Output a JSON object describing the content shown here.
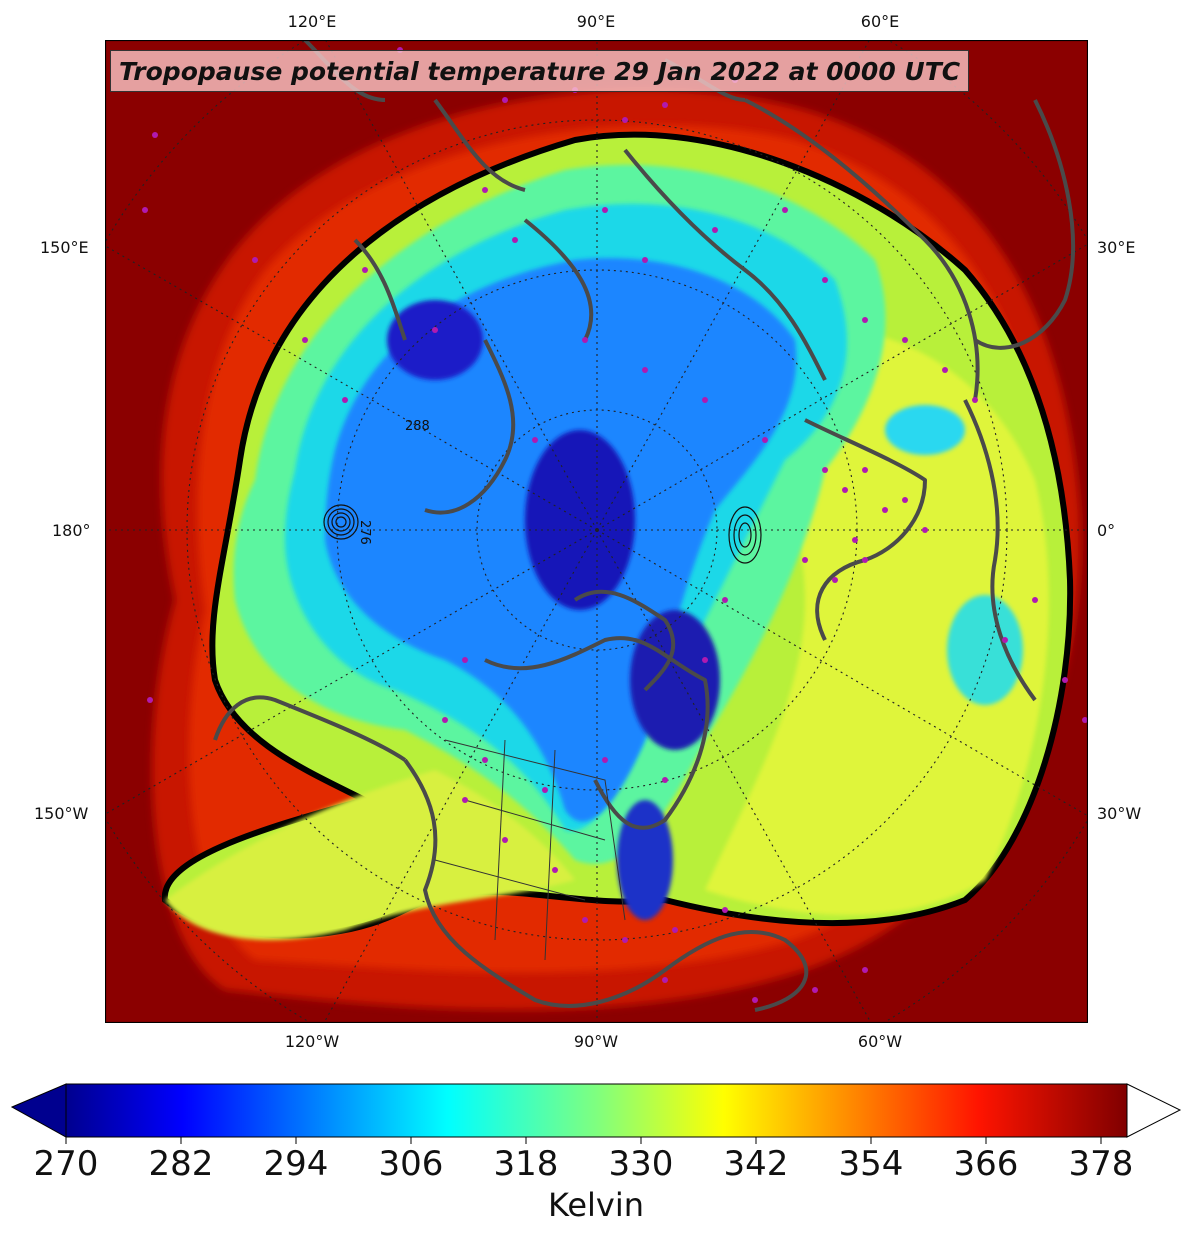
{
  "map": {
    "title": "Tropopause potential temperature 29 Jan 2022 at 0000 UTC",
    "projection": "north-polar-stereographic",
    "colors": {
      "outer": "#8b0000",
      "ring": "#d81b00",
      "ring_dark": "#000000",
      "yellow_region": "#d4f43a",
      "green_region": "#56f3a0",
      "cyan_region": "#19d4f0",
      "blue_region": "#1a7cff",
      "deep_blue": "#1a1ac8",
      "coastline": "#4a4a4a",
      "stations": "#b01ab0"
    },
    "labels_top": [
      "120°E",
      "90°E",
      "60°E"
    ],
    "labels_bottom": [
      "120°W",
      "90°W",
      "60°W"
    ],
    "labels_left": [
      "150°E",
      "180°",
      "150°W"
    ],
    "labels_right": [
      "30°E",
      "0°",
      "30°W"
    ],
    "contour_labels": [
      "276",
      "288"
    ]
  },
  "colorbar": {
    "unit": "Kelvin",
    "ticks": [
      "270",
      "282",
      "294",
      "306",
      "318",
      "330",
      "342",
      "354",
      "366",
      "378"
    ],
    "min": 270,
    "max": 381,
    "extend": "both",
    "colormap": "jet"
  }
}
